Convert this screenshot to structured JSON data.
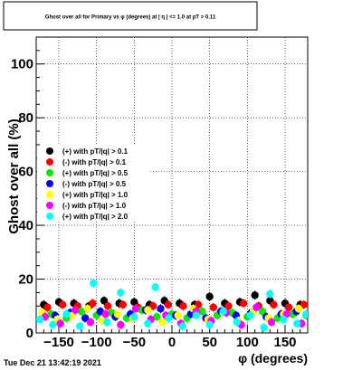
{
  "chart_data": {
    "type": "scatter",
    "title": "Ghost over all for Primary vs φ (degrees) at | η | <= 1.0 at pT > 0.11",
    "xlabel": "φ (degrees)",
    "ylabel": "Ghost  over all (%)",
    "xlim": [
      -180,
      180
    ],
    "ylim": [
      0,
      110
    ],
    "xticks": [
      -150,
      -100,
      -50,
      0,
      50,
      100,
      150
    ],
    "yticks": [
      0,
      20,
      40,
      60,
      80,
      100
    ],
    "grid": true,
    "legend_position": "left",
    "series": [
      {
        "name": "(+) with pT/|q| > 0.1",
        "color": "#000000",
        "values": [
          [
            -170,
            10.5
          ],
          [
            -150,
            11.5
          ],
          [
            -130,
            11.0
          ],
          [
            -110,
            10.0
          ],
          [
            -90,
            12.0
          ],
          [
            -70,
            11.0
          ],
          [
            -50,
            11.5
          ],
          [
            -30,
            10.5
          ],
          [
            -10,
            12.0
          ],
          [
            10,
            11.0
          ],
          [
            30,
            10.5
          ],
          [
            50,
            13.5
          ],
          [
            70,
            11.0
          ],
          [
            90,
            11.5
          ],
          [
            110,
            14.0
          ],
          [
            130,
            12.0
          ],
          [
            150,
            11.0
          ],
          [
            170,
            10.5
          ]
        ]
      },
      {
        "name": "(-) with pT/|q| > 0.1",
        "color": "#ff0000",
        "values": [
          [
            -165,
            9.5
          ],
          [
            -145,
            10.5
          ],
          [
            -125,
            10.0
          ],
          [
            -105,
            11.0
          ],
          [
            -85,
            10.0
          ],
          [
            -65,
            10.5
          ],
          [
            -45,
            9.5
          ],
          [
            -25,
            10.0
          ],
          [
            -5,
            10.5
          ],
          [
            15,
            10.0
          ],
          [
            35,
            10.5
          ],
          [
            55,
            9.5
          ],
          [
            75,
            10.0
          ],
          [
            95,
            11.0
          ],
          [
            115,
            10.0
          ],
          [
            135,
            10.5
          ],
          [
            155,
            9.5
          ],
          [
            175,
            10.5
          ]
        ]
      },
      {
        "name": "(+) with pT/|q| > 0.5",
        "color": "#00ee00",
        "values": [
          [
            -160,
            7.0
          ],
          [
            -140,
            5.5
          ],
          [
            -120,
            8.0
          ],
          [
            -100,
            6.5
          ],
          [
            -80,
            7.5
          ],
          [
            -60,
            5.5
          ],
          [
            -40,
            8.5
          ],
          [
            -20,
            6.0
          ],
          [
            0,
            7.0
          ],
          [
            20,
            5.5
          ],
          [
            40,
            8.0
          ],
          [
            60,
            6.5
          ],
          [
            80,
            7.5
          ],
          [
            100,
            6.0
          ],
          [
            120,
            8.0
          ],
          [
            140,
            5.5
          ],
          [
            160,
            7.0
          ],
          [
            178,
            6.5
          ]
        ]
      },
      {
        "name": "(-) with pT/|q| > 0.5",
        "color": "#0000ff",
        "values": [
          [
            -155,
            6.5
          ],
          [
            -135,
            7.5
          ],
          [
            -115,
            5.5
          ],
          [
            -95,
            8.0
          ],
          [
            -75,
            6.0
          ],
          [
            -55,
            7.0
          ],
          [
            -35,
            8.5
          ],
          [
            -15,
            9.0
          ],
          [
            5,
            6.5
          ],
          [
            25,
            7.0
          ],
          [
            45,
            5.5
          ],
          [
            65,
            8.0
          ],
          [
            85,
            6.5
          ],
          [
            105,
            7.5
          ],
          [
            125,
            6.0
          ],
          [
            145,
            7.0
          ],
          [
            165,
            8.0
          ]
        ]
      },
      {
        "name": "(+) with pT/|q| > 1.0",
        "color": "#ffff00",
        "values": [
          [
            -172,
            7.5
          ],
          [
            -152,
            5.0
          ],
          [
            -132,
            6.5
          ],
          [
            -112,
            9.0
          ],
          [
            -92,
            4.5
          ],
          [
            -72,
            7.0
          ],
          [
            -52,
            5.5
          ],
          [
            -32,
            8.5
          ],
          [
            -12,
            4.0
          ],
          [
            8,
            6.5
          ],
          [
            28,
            9.0
          ],
          [
            48,
            5.0
          ],
          [
            68,
            7.5
          ],
          [
            88,
            4.5
          ],
          [
            108,
            8.0
          ],
          [
            128,
            5.5
          ],
          [
            148,
            7.0
          ],
          [
            168,
            9.0
          ]
        ]
      },
      {
        "name": "(-) with pT/|q| > 1.0",
        "color": "#ff00ff",
        "values": [
          [
            -168,
            6.0
          ],
          [
            -148,
            3.5
          ],
          [
            -128,
            8.5
          ],
          [
            -108,
            4.0
          ],
          [
            -88,
            7.0
          ],
          [
            -68,
            3.0
          ],
          [
            -48,
            9.0
          ],
          [
            -28,
            5.0
          ],
          [
            -8,
            6.5
          ],
          [
            12,
            3.5
          ],
          [
            32,
            8.0
          ],
          [
            52,
            4.5
          ],
          [
            72,
            7.5
          ],
          [
            92,
            3.0
          ],
          [
            112,
            9.5
          ],
          [
            132,
            4.0
          ],
          [
            152,
            7.0
          ],
          [
            172,
            3.5
          ]
        ]
      },
      {
        "name": "(+) with pT/|q| > 2.0",
        "color": "#00ffff",
        "values": [
          [
            -175,
            5.0
          ],
          [
            -158,
            3.0
          ],
          [
            -140,
            7.0
          ],
          [
            -122,
            2.5
          ],
          [
            -104,
            18.5
          ],
          [
            -86,
            4.0
          ],
          [
            -68,
            15.0
          ],
          [
            -50,
            6.0
          ],
          [
            -32,
            3.5
          ],
          [
            -22,
            17.0
          ],
          [
            -4,
            5.5
          ],
          [
            14,
            2.5
          ],
          [
            32,
            6.5
          ],
          [
            50,
            3.0
          ],
          [
            68,
            8.0
          ],
          [
            86,
            4.0
          ],
          [
            104,
            6.5
          ],
          [
            122,
            2.0
          ],
          [
            130,
            14.5
          ],
          [
            148,
            5.0
          ],
          [
            166,
            3.5
          ],
          [
            178,
            7.0
          ]
        ]
      }
    ]
  }
}
